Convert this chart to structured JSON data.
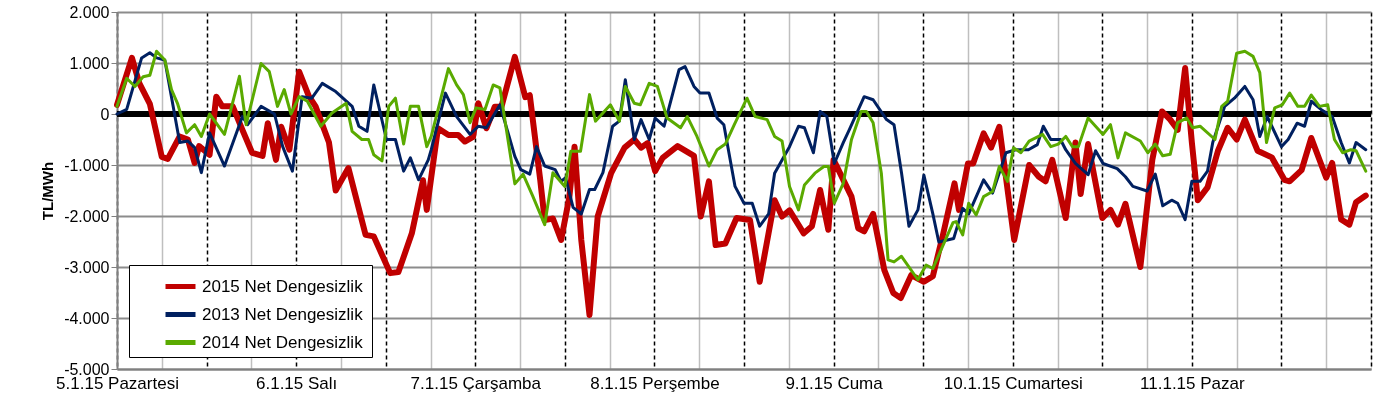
{
  "chart_data": {
    "type": "line",
    "ylabel": "TL/MWh",
    "xlim": [
      "2015-01-05T00:00",
      "2015-01-12T00:00"
    ],
    "ylim": [
      -5000,
      2000
    ],
    "xticks": [
      {
        "value": "2015-01-05T00:00",
        "label": "5.1.15 Pazartesi"
      },
      {
        "value": "2015-01-05T06:00",
        "label": null
      },
      {
        "value": "2015-01-05T12:00",
        "label": null
      },
      {
        "value": "2015-01-05T18:00",
        "label": null
      },
      {
        "value": "2015-01-06T00:00",
        "label": "6.1.15 Salı"
      },
      {
        "value": "2015-01-06T06:00",
        "label": null
      },
      {
        "value": "2015-01-06T12:00",
        "label": null
      },
      {
        "value": "2015-01-06T18:00",
        "label": null
      },
      {
        "value": "2015-01-07T00:00",
        "label": "7.1.15 Çarşamba"
      },
      {
        "value": "2015-01-07T06:00",
        "label": null
      },
      {
        "value": "2015-01-07T12:00",
        "label": null
      },
      {
        "value": "2015-01-07T18:00",
        "label": null
      },
      {
        "value": "2015-01-08T00:00",
        "label": "8.1.15 Perşembe"
      },
      {
        "value": "2015-01-08T06:00",
        "label": null
      },
      {
        "value": "2015-01-08T12:00",
        "label": null
      },
      {
        "value": "2015-01-08T18:00",
        "label": null
      },
      {
        "value": "2015-01-09T00:00",
        "label": "9.1.15 Cuma"
      },
      {
        "value": "2015-01-09T06:00",
        "label": null
      },
      {
        "value": "2015-01-09T12:00",
        "label": null
      },
      {
        "value": "2015-01-09T18:00",
        "label": null
      },
      {
        "value": "2015-01-10T00:00",
        "label": "10.1.15 Cumartesi"
      },
      {
        "value": "2015-01-10T06:00",
        "label": null
      },
      {
        "value": "2015-01-10T12:00",
        "label": null
      },
      {
        "value": "2015-01-10T18:00",
        "label": null
      },
      {
        "value": "2015-01-11T00:00",
        "label": "11.1.15 Pazar"
      },
      {
        "value": "2015-01-11T06:00",
        "label": null
      },
      {
        "value": "2015-01-11T12:00",
        "label": null
      },
      {
        "value": "2015-01-11T18:00",
        "label": null
      },
      {
        "value": "2015-01-12T00:00",
        "label": null
      }
    ],
    "yticks": [
      {
        "value": -5000,
        "label": "-5.000"
      },
      {
        "value": -4000,
        "label": "-4.000"
      },
      {
        "value": -3000,
        "label": "-3.000"
      },
      {
        "value": -2000,
        "label": "-2.000"
      },
      {
        "value": -1000,
        "label": "-1.000"
      },
      0,
      {
        "value": 1000,
        "label": "1.000"
      },
      {
        "value": 2000,
        "label": "2.000"
      }
    ],
    "grid": true,
    "legend": "bottom left",
    "line_style": "solid",
    "marker": "none",
    "ref_lines": [
      {
        "axis": "y",
        "value": 0,
        "color": "#000000"
      }
    ],
    "series": [
      {
        "name": "2015  Net Dengesizlik",
        "color": "#c00000",
        "x": [
          "2015-01-05T00:00",
          "2015-01-05T02:00",
          "2015-01-05T03:00",
          "2015-01-05T04:24",
          "2015-01-05T06:00",
          "2015-01-05T06:48",
          "2015-01-05T08:24",
          "2015-01-05T09:30",
          "2015-01-05T10:24",
          "2015-01-05T11:00",
          "2015-01-05T12:24",
          "2015-01-05T13:18",
          "2015-01-05T14:06",
          "2015-01-05T15:30",
          "2015-01-05T16:48",
          "2015-01-05T18:06",
          "2015-01-05T19:30",
          "2015-01-05T20:12",
          "2015-01-05T21:18",
          "2015-01-05T22:00",
          "2015-01-05T23:06",
          "2015-01-06T00:24",
          "2015-01-06T01:42",
          "2015-01-06T02:36",
          "2015-01-06T04:24",
          "2015-01-06T05:18",
          "2015-01-06T07:00",
          "2015-01-06T09:18",
          "2015-01-06T10:24",
          "2015-01-06T12:36",
          "2015-01-06T13:42",
          "2015-01-06T15:30",
          "2015-01-06T17:00",
          "2015-01-06T17:30",
          "2015-01-06T19:00",
          "2015-01-06T20:24",
          "2015-01-06T21:42",
          "2015-01-06T22:36",
          "2015-01-06T23:42",
          "2015-01-07T00:24",
          "2015-01-07T01:30",
          "2015-01-07T02:36",
          "2015-01-07T03:30",
          "2015-01-07T05:18",
          "2015-01-07T06:42",
          "2015-01-07T07:18",
          "2015-01-07T08:42",
          "2015-01-07T09:18",
          "2015-01-07T10:24",
          "2015-01-07T11:30",
          "2015-01-07T12:36",
          "2015-01-07T13:18",
          "2015-01-07T14:12",
          "2015-01-07T15:18",
          "2015-01-07T16:24",
          "2015-01-07T18:12",
          "2015-01-07T20:00",
          "2015-01-07T21:18",
          "2015-01-07T22:12",
          "2015-01-07T23:06",
          "2015-01-08T00:06",
          "2015-01-08T01:06",
          "2015-01-08T03:06",
          "2015-01-08T05:18",
          "2015-01-08T06:12",
          "2015-01-08T07:18",
          "2015-01-08T08:12",
          "2015-01-08T09:30",
          "2015-01-08T11:00",
          "2015-01-08T12:48",
          "2015-01-08T14:06",
          "2015-01-08T16:06",
          "2015-01-08T17:06",
          "2015-01-08T18:06",
          "2015-01-08T20:00",
          "2015-01-08T21:06",
          "2015-01-08T22:12",
          "2015-01-08T23:18",
          "2015-01-09T00:00",
          "2015-01-09T02:24",
          "2015-01-09T03:18",
          "2015-01-09T04:06",
          "2015-01-09T05:18",
          "2015-01-09T06:48",
          "2015-01-09T08:00",
          "2015-01-09T09:00",
          "2015-01-09T10:24",
          "2015-01-09T12:06",
          "2015-01-09T13:18",
          "2015-01-09T14:42",
          "2015-01-09T16:12",
          "2015-01-09T16:48",
          "2015-01-09T18:00",
          "2015-01-09T18:42",
          "2015-01-09T20:06",
          "2015-01-09T21:06",
          "2015-01-09T22:12",
          "2015-01-10T00:12",
          "2015-01-10T02:12",
          "2015-01-10T03:30",
          "2015-01-10T04:24",
          "2015-01-10T05:18",
          "2015-01-10T07:06",
          "2015-01-10T08:24",
          "2015-01-10T09:06",
          "2015-01-10T10:06",
          "2015-01-10T12:00",
          "2015-01-10T13:06",
          "2015-01-10T14:06",
          "2015-01-10T15:06",
          "2015-01-10T17:06",
          "2015-01-10T18:42",
          "2015-01-10T20:00",
          "2015-01-10T21:06",
          "2015-01-10T22:06",
          "2015-01-10T23:06",
          "2015-01-11T00:00",
          "2015-01-11T00:48",
          "2015-01-11T02:06",
          "2015-01-11T03:30",
          "2015-01-11T04:48",
          "2015-01-11T06:00",
          "2015-01-11T07:06",
          "2015-01-11T08:48",
          "2015-01-11T10:42",
          "2015-01-11T12:24",
          "2015-01-11T13:06",
          "2015-01-11T14:42",
          "2015-01-11T16:00",
          "2015-01-11T18:00",
          "2015-01-11T18:48",
          "2015-01-11T20:00",
          "2015-01-11T21:06",
          "2015-01-11T22:00",
          "2015-01-11T23:18"
        ],
        "values": [
          180,
          1100,
          600,
          200,
          -840,
          -880,
          -440,
          -500,
          -960,
          -630,
          -800,
          340,
          150,
          150,
          -310,
          -760,
          -820,
          -180,
          -900,
          -250,
          -700,
          830,
          350,
          150,
          -560,
          -1500,
          -1060,
          -2370,
          -2400,
          -3120,
          -3100,
          -2340,
          -1300,
          -1880,
          -280,
          -410,
          -410,
          -540,
          -450,
          210,
          -280,
          140,
          140,
          1120,
          330,
          370,
          -1290,
          -2080,
          -2050,
          -2470,
          -1630,
          -640,
          -2470,
          -3940,
          -2010,
          -1160,
          -660,
          -500,
          -660,
          -570,
          -1120,
          -860,
          -630,
          -820,
          -2010,
          -1320,
          -2570,
          -2540,
          -2040,
          -2080,
          -3290,
          -1690,
          -2010,
          -1890,
          -2340,
          -2200,
          -1490,
          -2270,
          -900,
          -1620,
          -2240,
          -2300,
          -1960,
          -3060,
          -3510,
          -3610,
          -3160,
          -3290,
          -3180,
          -2340,
          -1360,
          -1880,
          -970,
          -970,
          -380,
          -660,
          -250,
          -2470,
          -1000,
          -1230,
          -1320,
          -900,
          -2040,
          -560,
          -1570,
          -590,
          -2040,
          -1880,
          -2170,
          -1760,
          -3000,
          -900,
          50,
          -110,
          -310,
          900,
          -560,
          -1690,
          -1440,
          -720,
          -270,
          -500,
          -110,
          -720,
          -850,
          -1290,
          -1320,
          -1100,
          -470,
          -1250,
          -960,
          -2070,
          -2170,
          -1730,
          -1600
        ]
      },
      {
        "name": "2013  Net Dengesizlik",
        "color": "#002060",
        "x": [
          "2015-01-05T00:00",
          "2015-01-05T01:18",
          "2015-01-05T03:18",
          "2015-01-05T04:24",
          "2015-01-05T05:18",
          "2015-01-05T06:24",
          "2015-01-05T08:24",
          "2015-01-05T09:30",
          "2015-01-05T10:24",
          "2015-01-05T11:18",
          "2015-01-05T12:24",
          "2015-01-05T14:24",
          "2015-01-05T16:48",
          "2015-01-05T17:30",
          "2015-01-05T19:18",
          "2015-01-05T21:06",
          "2015-01-05T22:12",
          "2015-01-05T23:30",
          "2015-01-06T00:48",
          "2015-01-06T02:06",
          "2015-01-06T03:30",
          "2015-01-06T05:18",
          "2015-01-06T07:30",
          "2015-01-06T08:24",
          "2015-01-06T09:30",
          "2015-01-06T10:24",
          "2015-01-06T12:06",
          "2015-01-06T13:18",
          "2015-01-06T14:24",
          "2015-01-06T15:18",
          "2015-01-06T16:24",
          "2015-01-06T17:42",
          "2015-01-06T18:06",
          "2015-01-06T20:00",
          "2015-01-06T21:30",
          "2015-01-06T23:18",
          "2015-01-07T00:24",
          "2015-01-07T01:30",
          "2015-01-07T03:18",
          "2015-01-07T05:18",
          "2015-01-07T06:06",
          "2015-01-07T07:18",
          "2015-01-07T08:12",
          "2015-01-07T09:18",
          "2015-01-07T10:42",
          "2015-01-07T11:30",
          "2015-01-07T12:06",
          "2015-01-07T13:06",
          "2015-01-07T14:12",
          "2015-01-07T15:18",
          "2015-01-07T16:00",
          "2015-01-07T17:06",
          "2015-01-07T18:24",
          "2015-01-07T19:18",
          "2015-01-07T20:06",
          "2015-01-07T21:18",
          "2015-01-07T22:12",
          "2015-01-07T23:18",
          "2015-01-08T00:06",
          "2015-01-08T01:18",
          "2015-01-08T03:18",
          "2015-01-08T04:06",
          "2015-01-08T05:18",
          "2015-01-08T06:06",
          "2015-01-08T07:18",
          "2015-01-08T08:24",
          "2015-01-08T09:18",
          "2015-01-08T10:48",
          "2015-01-08T12:00",
          "2015-01-08T13:06",
          "2015-01-08T14:06",
          "2015-01-08T15:18",
          "2015-01-08T16:06",
          "2015-01-08T18:06",
          "2015-01-08T19:18",
          "2015-01-08T20:06",
          "2015-01-08T21:18",
          "2015-01-08T22:12",
          "2015-01-08T23:06",
          "2015-01-09T00:06",
          "2015-01-09T01:18",
          "2015-01-09T02:06",
          "2015-01-09T04:06",
          "2015-01-09T05:18",
          "2015-01-09T07:06",
          "2015-01-09T08:06",
          "2015-01-09T09:06",
          "2015-01-09T10:06",
          "2015-01-09T11:18",
          "2015-01-09T12:06",
          "2015-01-09T13:18",
          "2015-01-09T14:06",
          "2015-01-09T16:06",
          "2015-01-09T17:18",
          "2015-01-09T18:06",
          "2015-01-09T20:06",
          "2015-01-09T21:18",
          "2015-01-09T23:06",
          "2015-01-10T00:24",
          "2015-01-10T02:06",
          "2015-01-10T03:18",
          "2015-01-10T04:06",
          "2015-01-10T05:06",
          "2015-01-10T06:24",
          "2015-01-10T07:06",
          "2015-01-10T08:24",
          "2015-01-10T10:06",
          "2015-01-10T11:06",
          "2015-01-10T12:06",
          "2015-01-10T14:00",
          "2015-01-10T15:06",
          "2015-01-10T16:06",
          "2015-01-10T18:00",
          "2015-01-10T19:06",
          "2015-01-10T20:06",
          "2015-01-10T21:18",
          "2015-01-10T22:06",
          "2015-01-10T23:06",
          "2015-01-11T00:00",
          "2015-01-11T01:06",
          "2015-01-11T02:06",
          "2015-01-11T02:48",
          "2015-01-11T04:24",
          "2015-01-11T05:42",
          "2015-01-11T07:06",
          "2015-01-11T08:12",
          "2015-01-11T09:06",
          "2015-01-11T10:06",
          "2015-01-11T12:00",
          "2015-01-11T12:54",
          "2015-01-11T14:06",
          "2015-01-11T15:06",
          "2015-01-11T16:00",
          "2015-01-11T17:18",
          "2015-01-11T18:48",
          "2015-01-11T20:00",
          "2015-01-11T21:06",
          "2015-01-11T22:00",
          "2015-01-11T23:18"
        ],
        "values": [
          0,
          90,
          1100,
          1200,
          1100,
          1060,
          -560,
          -530,
          -660,
          -1150,
          -370,
          -1020,
          -50,
          -210,
          150,
          0,
          -640,
          -1120,
          340,
          310,
          600,
          440,
          150,
          -240,
          -340,
          570,
          -500,
          -500,
          -1120,
          -860,
          -1290,
          -900,
          -700,
          410,
          -50,
          -400,
          -240,
          -270,
          180,
          -830,
          -1090,
          -1180,
          -640,
          -1020,
          -1090,
          -1320,
          -1250,
          -1830,
          -1960,
          -1480,
          -1480,
          -1150,
          -240,
          -140,
          670,
          -500,
          -110,
          -500,
          -80,
          -240,
          870,
          930,
          540,
          410,
          410,
          -80,
          -210,
          -1420,
          -1750,
          -1750,
          -2200,
          -1960,
          -1160,
          -640,
          -240,
          -270,
          -760,
          50,
          -50,
          -970,
          -560,
          -310,
          340,
          280,
          -110,
          -210,
          -1150,
          -2200,
          -1880,
          -1200,
          -1960,
          -2510,
          -2440,
          -1850,
          -1960,
          -1290,
          -1550,
          -760,
          -700,
          -700,
          -600,
          -240,
          -500,
          -500,
          -700,
          -970,
          -1190,
          -720,
          -970,
          -1070,
          -1230,
          -1420,
          -1510,
          -1180,
          -1800,
          -1690,
          -1750,
          -2070,
          -1320,
          -1320,
          -1120,
          -560,
          150,
          310,
          540,
          280,
          -440,
          -50,
          -640,
          -500,
          -180,
          -240,
          250,
          90,
          -50,
          -560,
          -960,
          -560,
          -700
        ]
      },
      {
        "name": "2014  Net Dengesizlik",
        "color": "#5aaa00",
        "x": [
          "2015-01-05T00:00",
          "2015-01-05T01:18",
          "2015-01-05T02:24",
          "2015-01-05T03:30",
          "2015-01-05T04:24",
          "2015-01-05T05:18",
          "2015-01-05T06:24",
          "2015-01-05T07:18",
          "2015-01-05T08:06",
          "2015-01-05T09:18",
          "2015-01-05T10:24",
          "2015-01-05T11:18",
          "2015-01-05T12:24",
          "2015-01-05T14:24",
          "2015-01-05T16:24",
          "2015-01-05T17:18",
          "2015-01-05T19:18",
          "2015-01-05T20:24",
          "2015-01-05T21:30",
          "2015-01-05T22:24",
          "2015-01-05T23:18",
          "2015-01-06T00:24",
          "2015-01-06T01:30",
          "2015-01-06T03:18",
          "2015-01-06T04:48",
          "2015-01-06T06:42",
          "2015-01-06T07:30",
          "2015-01-06T08:48",
          "2015-01-06T09:42",
          "2015-01-06T10:24",
          "2015-01-06T11:30",
          "2015-01-06T12:24",
          "2015-01-06T13:18",
          "2015-01-06T14:24",
          "2015-01-06T15:18",
          "2015-01-06T16:24",
          "2015-01-06T17:30",
          "2015-01-06T18:06",
          "2015-01-06T20:24",
          "2015-01-06T21:30",
          "2015-01-06T22:24",
          "2015-01-06T23:18",
          "2015-01-07T00:06",
          "2015-01-07T01:18",
          "2015-01-07T02:24",
          "2015-01-07T03:18",
          "2015-01-07T05:18",
          "2015-01-07T06:24",
          "2015-01-07T07:42",
          "2015-01-07T09:18",
          "2015-01-07T10:24",
          "2015-01-07T12:00",
          "2015-01-07T12:48",
          "2015-01-07T14:06",
          "2015-01-07T15:18",
          "2015-01-07T16:06",
          "2015-01-07T18:06",
          "2015-01-07T19:18",
          "2015-01-07T20:06",
          "2015-01-07T21:18",
          "2015-01-07T22:06",
          "2015-01-07T23:18",
          "2015-01-08T00:24",
          "2015-01-08T01:42",
          "2015-01-08T03:30",
          "2015-01-08T04:24",
          "2015-01-08T05:42",
          "2015-01-08T07:18",
          "2015-01-08T08:24",
          "2015-01-08T09:30",
          "2015-01-08T10:42",
          "2015-01-08T12:24",
          "2015-01-08T13:30",
          "2015-01-08T15:06",
          "2015-01-08T16:06",
          "2015-01-08T17:06",
          "2015-01-08T18:06",
          "2015-01-08T19:18",
          "2015-01-08T20:06",
          "2015-01-08T21:30",
          "2015-01-08T22:42",
          "2015-01-08T23:18",
          "2015-01-09T00:06",
          "2015-01-09T01:18",
          "2015-01-09T02:24",
          "2015-01-09T03:42",
          "2015-01-09T04:24",
          "2015-01-09T05:18",
          "2015-01-09T06:24",
          "2015-01-09T07:18",
          "2015-01-09T08:06",
          "2015-01-09T09:06",
          "2015-01-09T11:18",
          "2015-01-09T12:24",
          "2015-01-09T13:18",
          "2015-01-09T16:00",
          "2015-01-09T16:24",
          "2015-01-09T17:18",
          "2015-01-09T18:06",
          "2015-01-09T19:06",
          "2015-01-09T20:06",
          "2015-01-09T21:18",
          "2015-01-09T22:12",
          "2015-01-09T23:18",
          "2015-01-10T00:06",
          "2015-01-10T01:06",
          "2015-01-10T02:12",
          "2015-01-10T04:00",
          "2015-01-10T05:06",
          "2015-01-10T06:06",
          "2015-01-10T07:06",
          "2015-01-10T08:00",
          "2015-01-10T08:48",
          "2015-01-10T10:06",
          "2015-01-10T12:06",
          "2015-01-10T13:06",
          "2015-01-10T14:06",
          "2015-01-10T15:06",
          "2015-01-10T17:06",
          "2015-01-10T18:06",
          "2015-01-10T19:06",
          "2015-01-10T20:06",
          "2015-01-10T21:06",
          "2015-01-10T22:06",
          "2015-01-10T23:18",
          "2015-01-11T00:06",
          "2015-01-11T01:06",
          "2015-01-11T03:06",
          "2015-01-11T04:00",
          "2015-01-11T04:48",
          "2015-01-11T06:00",
          "2015-01-11T07:06",
          "2015-01-11T08:12",
          "2015-01-11T09:06",
          "2015-01-11T10:00",
          "2015-01-11T11:06",
          "2015-01-11T12:06",
          "2015-01-11T13:06",
          "2015-01-11T14:12",
          "2015-01-11T15:06",
          "2015-01-11T16:00",
          "2015-01-11T17:06",
          "2015-01-11T18:12",
          "2015-01-11T19:06",
          "2015-01-11T20:12",
          "2015-01-11T21:18",
          "2015-01-11T22:00",
          "2015-01-11T23:18"
        ],
        "values": [
          150,
          700,
          540,
          730,
          760,
          1230,
          1060,
          480,
          210,
          -370,
          -210,
          -440,
          0,
          -400,
          740,
          -210,
          990,
          830,
          150,
          480,
          0,
          340,
          250,
          -240,
          20,
          210,
          -340,
          -500,
          -500,
          -800,
          -920,
          150,
          310,
          -590,
          150,
          150,
          -640,
          -440,
          890,
          570,
          380,
          -170,
          120,
          90,
          570,
          510,
          -1370,
          -1180,
          -1610,
          -2170,
          -1150,
          -1420,
          -730,
          -730,
          380,
          -140,
          180,
          -140,
          540,
          210,
          180,
          600,
          540,
          -80,
          -270,
          -50,
          -440,
          -1020,
          -700,
          -590,
          -210,
          310,
          -50,
          -110,
          -440,
          -530,
          -1420,
          -1880,
          -1390,
          -1160,
          -1030,
          -1030,
          -1750,
          -1360,
          -500,
          50,
          50,
          -170,
          -1160,
          -2860,
          -2900,
          -2790,
          -3250,
          -2960,
          -3030,
          -2130,
          -2110,
          -2370,
          -1750,
          -1980,
          -1620,
          -1520,
          -1030,
          -1320,
          -660,
          -760,
          -530,
          -400,
          -640,
          -590,
          -440,
          -640,
          -640,
          -80,
          -400,
          -210,
          -860,
          -370,
          -530,
          -760,
          -590,
          -820,
          -790,
          -170,
          -80,
          -270,
          -240,
          -500,
          150,
          250,
          1190,
          1230,
          1130,
          810,
          -560,
          120,
          180,
          410,
          150,
          150,
          370,
          150,
          180,
          -500,
          -760,
          -700,
          -720,
          -1120
        ]
      }
    ]
  }
}
